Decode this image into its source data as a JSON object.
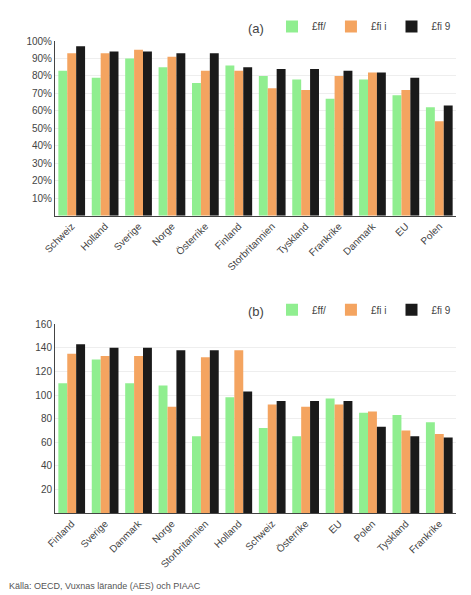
{
  "chart_data": [
    {
      "type": "bar",
      "title": "(a)",
      "categories": [
        "Schweiz",
        "Holland",
        "Sverige",
        "Norge",
        "Österrike",
        "Finland",
        "Storbritannien",
        "Tyskland",
        "Frankrike",
        "Danmark",
        "EU",
        "Polen"
      ],
      "series": [
        {
          "name": "£ff/",
          "color": "#90EE90",
          "values": [
            83,
            79,
            90,
            85,
            76,
            86,
            80,
            78,
            67,
            78,
            69,
            62
          ]
        },
        {
          "name": "£fi i",
          "color": "#F4A460",
          "values": [
            93,
            93,
            95,
            91,
            83,
            83,
            73,
            72,
            80,
            82,
            72,
            54
          ]
        },
        {
          "name": "£fi 9",
          "color": "#1a1a1a",
          "values": [
            97,
            94,
            94,
            93,
            93,
            85,
            84,
            84,
            83,
            82,
            79,
            63
          ]
        }
      ],
      "ylim": [
        0,
        100
      ],
      "yticks": [
        {
          "value": 10,
          "label": "10%"
        },
        {
          "value": 20,
          "label": "20%"
        },
        {
          "value": 30,
          "label": "30%"
        },
        {
          "value": 40,
          "label": "40%"
        },
        {
          "value": 50,
          "label": "50%"
        },
        {
          "value": 60,
          "label": "60%"
        },
        {
          "value": 70,
          "label": "70%"
        },
        {
          "value": 80,
          "label": "80%"
        },
        {
          "value": 90,
          "label": "90%"
        },
        {
          "value": 100,
          "label": "100%"
        }
      ],
      "grid": true,
      "legend": "upper right"
    },
    {
      "type": "bar",
      "title": "(b)",
      "categories": [
        "Finland",
        "Sverige",
        "Danmark",
        "Norge",
        "Storbritannien",
        "Holland",
        "Schweiz",
        "Österrike",
        "EU",
        "Polen",
        "Tyskland",
        "Frankrike"
      ],
      "series": [
        {
          "name": "£ff/",
          "color": "#90EE90",
          "values": [
            110,
            130,
            110,
            108,
            65,
            98,
            72,
            65,
            97,
            85,
            83,
            77
          ]
        },
        {
          "name": "£fi i",
          "color": "#F4A460",
          "values": [
            135,
            133,
            133,
            90,
            132,
            138,
            92,
            90,
            92,
            86,
            70,
            67
          ]
        },
        {
          "name": "£fi 9",
          "color": "#1a1a1a",
          "values": [
            143,
            140,
            140,
            138,
            138,
            103,
            95,
            95,
            95,
            73,
            65,
            64
          ]
        }
      ],
      "ylim": [
        0,
        160
      ],
      "yticks": [
        20,
        40,
        60,
        80,
        100,
        120,
        140,
        160
      ],
      "grid": true,
      "legend": "upper right",
      "annotations": [
        "Källa: OECD, Vuxnas lärande (AES) och PIAAC"
      ]
    }
  ]
}
